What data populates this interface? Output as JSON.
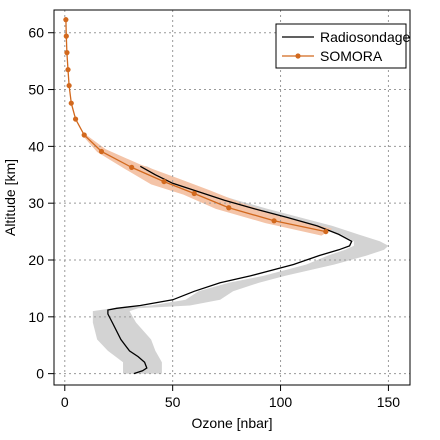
{
  "chart_data": {
    "type": "line",
    "xlabel": "Ozone [nbar]",
    "ylabel": "Altitude [km]",
    "xlim": [
      -5,
      160
    ],
    "ylim": [
      -2,
      64
    ],
    "x_ticks": [
      0,
      50,
      100,
      150
    ],
    "y_ticks": [
      0,
      10,
      20,
      30,
      40,
      50,
      60
    ],
    "x_tick_labels": [
      "0",
      "50",
      "100",
      "150"
    ],
    "y_tick_labels": [
      "0",
      "10",
      "20",
      "30",
      "40",
      "50",
      "60"
    ],
    "grid": true,
    "legend_position": "top-right",
    "series": [
      {
        "name": "Radiosondage",
        "color": "#000000",
        "marker": "none",
        "points": [
          [
            32,
            0
          ],
          [
            36,
            0.5
          ],
          [
            38,
            1
          ],
          [
            37,
            2
          ],
          [
            34,
            3
          ],
          [
            30,
            4
          ],
          [
            26,
            6
          ],
          [
            22,
            9
          ],
          [
            20,
            10.5
          ],
          [
            20,
            11.2
          ],
          [
            24,
            11.5
          ],
          [
            35,
            12
          ],
          [
            50,
            13
          ],
          [
            60,
            14.5
          ],
          [
            72,
            16
          ],
          [
            86,
            17.2
          ],
          [
            106,
            19.2
          ],
          [
            118,
            20.8
          ],
          [
            127,
            21.8
          ],
          [
            132,
            22.5
          ],
          [
            133,
            23.3
          ],
          [
            127,
            24.5
          ],
          [
            117,
            26
          ],
          [
            103,
            27.5
          ],
          [
            88,
            29
          ],
          [
            74,
            30.5
          ],
          [
            62,
            32
          ],
          [
            50,
            33.5
          ],
          [
            42,
            35
          ],
          [
            35,
            36.5
          ]
        ]
      },
      {
        "name": "SOMORA",
        "color": "#d2691e",
        "marker": "circle",
        "points": [
          [
            121,
            25
          ],
          [
            97,
            26.9
          ],
          [
            76,
            29.2
          ],
          [
            60,
            31.7
          ],
          [
            46,
            33.8
          ],
          [
            31,
            36.3
          ],
          [
            17,
            39.1
          ],
          [
            9,
            42
          ],
          [
            5,
            44.8
          ],
          [
            3,
            47.6
          ],
          [
            2,
            50.7
          ],
          [
            1.5,
            53.5
          ],
          [
            1,
            56.5
          ],
          [
            0.7,
            59.4
          ],
          [
            0.5,
            62.3
          ]
        ]
      }
    ],
    "uncertainty_bands": [
      {
        "series": "Radiosondage",
        "color": "#d3d3d3",
        "lower": [
          [
            27,
            0
          ],
          [
            27,
            2
          ],
          [
            20,
            4
          ],
          [
            15,
            6
          ],
          [
            13,
            9
          ],
          [
            13,
            11
          ],
          [
            22,
            11.5
          ],
          [
            40,
            12
          ],
          [
            56,
            13
          ],
          [
            62,
            14.5
          ],
          [
            76,
            16
          ],
          [
            92,
            17.2
          ],
          [
            112,
            19.2
          ],
          [
            122,
            20.8
          ],
          [
            130,
            21.8
          ],
          [
            134,
            22.5
          ],
          [
            134,
            23.3
          ],
          [
            128,
            24.5
          ],
          [
            116,
            26
          ],
          [
            100,
            27.5
          ],
          [
            85,
            29
          ],
          [
            71,
            30.5
          ],
          [
            59,
            32
          ],
          [
            47,
            33.5
          ],
          [
            39,
            35
          ],
          [
            33,
            36.5
          ]
        ],
        "upper": [
          [
            45,
            0
          ],
          [
            45,
            2
          ],
          [
            42,
            4
          ],
          [
            40,
            6
          ],
          [
            33,
            9
          ],
          [
            30,
            11
          ],
          [
            34,
            11.5
          ],
          [
            58,
            12
          ],
          [
            72,
            13
          ],
          [
            78,
            14.5
          ],
          [
            90,
            16
          ],
          [
            102,
            17.2
          ],
          [
            125,
            19.2
          ],
          [
            140,
            20.8
          ],
          [
            148,
            21.8
          ],
          [
            150,
            22.5
          ],
          [
            146,
            23.3
          ],
          [
            136,
            24.5
          ],
          [
            124,
            26
          ],
          [
            109,
            27.5
          ],
          [
            94,
            29
          ],
          [
            80,
            30.5
          ],
          [
            67,
            32
          ],
          [
            54,
            33.5
          ],
          [
            46,
            35
          ],
          [
            38,
            36.5
          ]
        ]
      },
      {
        "series": "SOMORA",
        "color": "#f4c4a8",
        "lower": [
          [
            119,
            24.3
          ],
          [
            93,
            26.5
          ],
          [
            70,
            29
          ],
          [
            55,
            31.5
          ],
          [
            40,
            33.3
          ],
          [
            28,
            36
          ],
          [
            15,
            39
          ],
          [
            8,
            42
          ]
        ],
        "upper": [
          [
            124,
            25.5
          ],
          [
            101,
            27.6
          ],
          [
            82,
            30
          ],
          [
            67,
            32.3
          ],
          [
            53,
            34.3
          ],
          [
            35,
            36.8
          ],
          [
            19,
            39.5
          ],
          [
            10,
            42
          ]
        ]
      }
    ]
  }
}
